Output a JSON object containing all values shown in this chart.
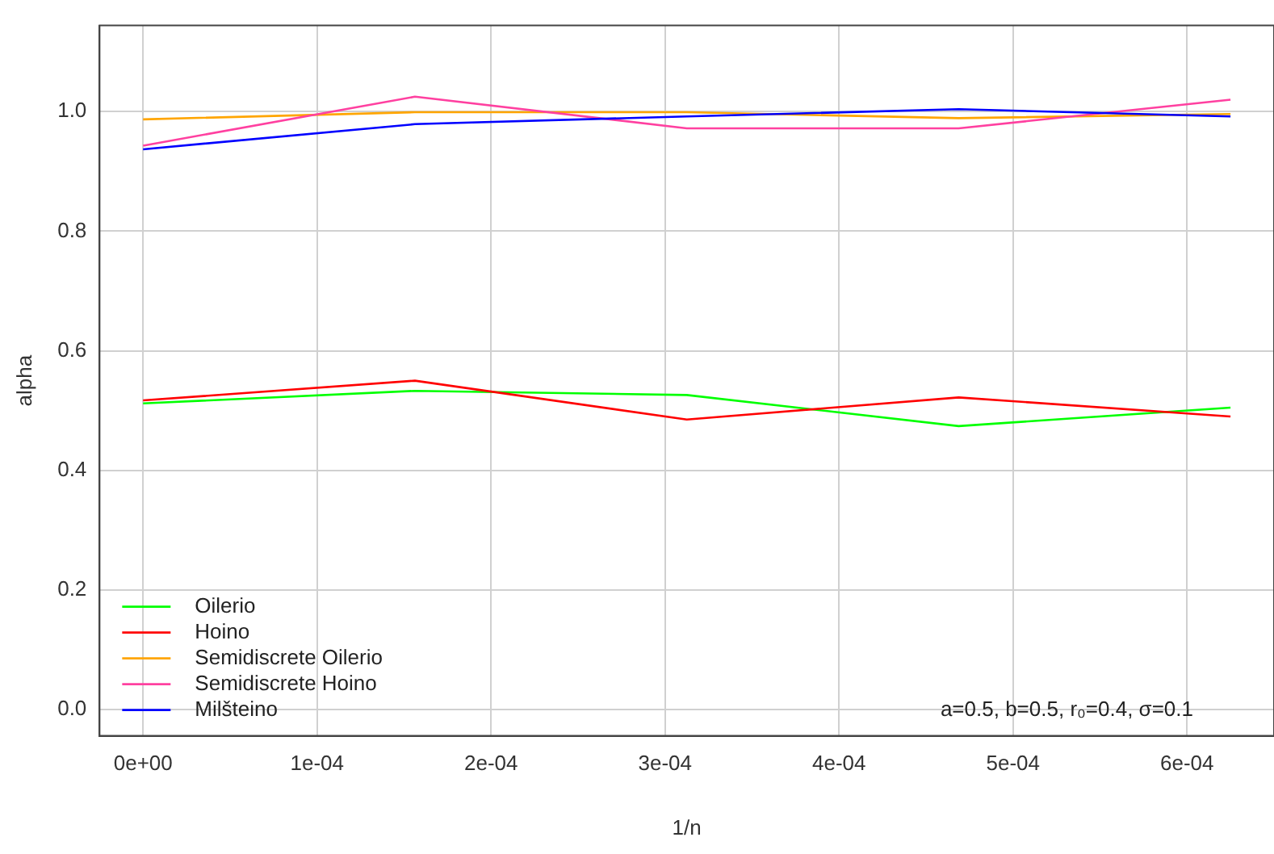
{
  "chart_data": {
    "type": "line",
    "xlabel": "1/n",
    "ylabel": "alpha",
    "x": [
      0,
      0.00015625,
      0.0003125,
      0.00046875,
      0.000625
    ],
    "series": [
      {
        "name": "Oilerio",
        "color": "#00ff00",
        "values": [
          0.512,
          0.533,
          0.526,
          0.474,
          0.505
        ]
      },
      {
        "name": "Hoino",
        "color": "#ff0000",
        "values": [
          0.517,
          0.55,
          0.485,
          0.522,
          0.49
        ]
      },
      {
        "name": "Semidiscrete Oilerio",
        "color": "#ffa500",
        "values": [
          0.987,
          0.999,
          0.999,
          0.989,
          0.996
        ]
      },
      {
        "name": "Semidiscrete Hoino",
        "color": "#ff40a0",
        "values": [
          0.943,
          1.025,
          0.972,
          0.972,
          1.02
        ]
      },
      {
        "name": "Milšteino",
        "color": "#0000ff",
        "values": [
          0.937,
          0.979,
          0.992,
          1.004,
          0.992
        ]
      }
    ],
    "xlim": [
      -2.5e-05,
      0.00065
    ],
    "xticks": [
      {
        "value": 0,
        "label": "0e+00"
      },
      {
        "value": 0.0001,
        "label": "1e-04"
      },
      {
        "value": 0.0002,
        "label": "2e-04"
      },
      {
        "value": 0.0003,
        "label": "3e-04"
      },
      {
        "value": 0.0004,
        "label": "4e-04"
      },
      {
        "value": 0.0005,
        "label": "5e-04"
      },
      {
        "value": 0.0006,
        "label": "6e-04"
      }
    ],
    "ylim": [
      -0.044,
      1.144
    ],
    "yticks": [
      {
        "value": 0,
        "label": "0.0"
      },
      {
        "value": 0.2,
        "label": "0.2"
      },
      {
        "value": 0.4,
        "label": "0.4"
      },
      {
        "value": 0.6,
        "label": "0.6"
      },
      {
        "value": 0.8,
        "label": "0.8"
      },
      {
        "value": 1,
        "label": "1.0"
      }
    ],
    "annotations": [
      "a=0.5, b=0.5, r₀=0.4, σ=0.1"
    ],
    "grid": true,
    "legend": "bottom left",
    "marker": "none",
    "line_style": "solid"
  }
}
